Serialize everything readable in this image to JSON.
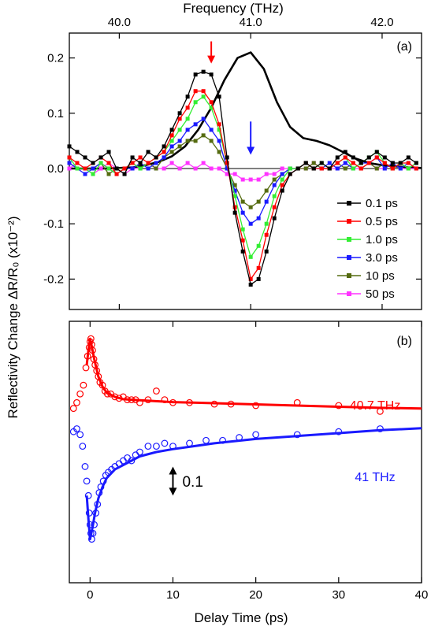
{
  "chart_data": [
    {
      "panel": "(a)",
      "type": "line",
      "xlabel": "Frequency (THz)",
      "ylabel": "Reflectivity Change ΔR/R₀ (x10⁻²)",
      "xlim": [
        39.62,
        42.3
      ],
      "ylim": [
        -0.255,
        0.245
      ],
      "xticks": [
        "40.0",
        "41.0",
        "42.0"
      ],
      "yticks": [
        "0.2",
        "0.1",
        "0.0",
        "-0.1",
        "-0.2"
      ],
      "ytick_values": [
        0.2,
        0.1,
        0.0,
        -0.1,
        -0.2
      ],
      "xtick_values": [
        40.0,
        41.0,
        42.0
      ],
      "x": [
        39.62,
        39.68,
        39.74,
        39.8,
        39.86,
        39.92,
        39.98,
        40.04,
        40.1,
        40.16,
        40.22,
        40.28,
        40.34,
        40.4,
        40.46,
        40.52,
        40.58,
        40.64,
        40.7,
        40.76,
        40.82,
        40.88,
        40.94,
        41.0,
        41.06,
        41.12,
        41.18,
        41.24,
        41.3,
        41.36,
        41.42,
        41.48,
        41.54,
        41.6,
        41.66,
        41.72,
        41.78,
        41.84,
        41.9,
        41.96,
        42.02,
        42.08,
        42.14,
        42.2,
        42.26
      ],
      "series": [
        {
          "name": "0.1 ps",
          "color": "#000000",
          "values": [
            0.04,
            0.03,
            0.02,
            0.01,
            0.02,
            0.03,
            0.0,
            -0.01,
            0.02,
            0.01,
            0.03,
            0.02,
            0.04,
            0.07,
            0.1,
            0.13,
            0.17,
            0.175,
            0.17,
            0.13,
            0.02,
            -0.08,
            -0.15,
            -0.21,
            -0.2,
            -0.15,
            -0.09,
            -0.04,
            -0.01,
            0.0,
            0.01,
            0.0,
            0.01,
            0.0,
            0.02,
            0.03,
            0.02,
            0.01,
            0.02,
            0.03,
            0.02,
            0.01,
            0.01,
            0.02,
            0.01
          ]
        },
        {
          "name": "0.5 ps",
          "color": "#ff0000",
          "values": [
            0.02,
            0.01,
            0.0,
            0.01,
            0.02,
            0.01,
            -0.01,
            0.0,
            0.01,
            0.02,
            0.01,
            0.02,
            0.03,
            0.06,
            0.09,
            0.11,
            0.14,
            0.14,
            0.12,
            0.08,
            0.01,
            -0.07,
            -0.13,
            -0.2,
            -0.18,
            -0.12,
            -0.07,
            -0.03,
            -0.01,
            0.0,
            0.01,
            0.0,
            0.0,
            0.0,
            0.01,
            0.02,
            0.01,
            0.0,
            0.01,
            0.02,
            0.01,
            0.0,
            0.01,
            0.01,
            0.0
          ]
        },
        {
          "name": "1.0 ps",
          "color": "#33ee33",
          "values": [
            0.02,
            0.0,
            0.0,
            -0.01,
            0.01,
            0.0,
            -0.01,
            0.0,
            0.01,
            0.0,
            0.01,
            0.02,
            0.03,
            0.05,
            0.07,
            0.09,
            0.12,
            0.13,
            0.11,
            0.07,
            0.01,
            -0.05,
            -0.11,
            -0.16,
            -0.14,
            -0.1,
            -0.05,
            -0.02,
            0.0,
            0.0,
            0.01,
            0.0,
            0.01,
            0.0,
            0.01,
            0.02,
            0.0,
            0.01,
            0.02,
            0.03,
            0.01,
            0.0,
            0.01,
            0.0,
            0.01
          ]
        },
        {
          "name": "3.0 ps",
          "color": "#1a1aff",
          "values": [
            0.01,
            0.0,
            -0.01,
            0.0,
            0.01,
            0.0,
            -0.01,
            0.0,
            0.0,
            0.01,
            0.0,
            0.01,
            0.02,
            0.04,
            0.05,
            0.07,
            0.08,
            0.09,
            0.07,
            0.05,
            0.0,
            -0.04,
            -0.08,
            -0.1,
            -0.09,
            -0.06,
            -0.03,
            -0.01,
            0.0,
            0.0,
            0.01,
            0.0,
            0.0,
            0.01,
            0.0,
            0.01,
            0.0,
            0.01,
            0.01,
            0.02,
            0.0,
            0.01,
            0.0,
            0.01,
            0.0
          ]
        },
        {
          "name": "10 ps",
          "color": "#556b10",
          "values": [
            0.01,
            0.0,
            0.0,
            0.0,
            0.01,
            -0.01,
            0.0,
            0.0,
            0.01,
            0.0,
            0.01,
            0.0,
            0.02,
            0.03,
            0.04,
            0.05,
            0.05,
            0.06,
            0.05,
            0.03,
            0.0,
            -0.03,
            -0.06,
            -0.07,
            -0.06,
            -0.04,
            -0.02,
            -0.01,
            0.0,
            0.0,
            0.0,
            0.01,
            0.0,
            0.0,
            0.01,
            0.0,
            0.01,
            0.0,
            0.01,
            0.0,
            0.01,
            0.0,
            0.01,
            0.0,
            0.01
          ]
        },
        {
          "name": "50 ps",
          "color": "#ff33ff",
          "values": [
            0.0,
            0.01,
            0.0,
            -0.01,
            0.0,
            0.01,
            0.0,
            -0.01,
            0.0,
            0.0,
            0.01,
            0.0,
            0.0,
            0.01,
            0.0,
            0.01,
            0.0,
            0.01,
            0.0,
            0.0,
            -0.01,
            -0.01,
            -0.02,
            -0.02,
            -0.02,
            -0.01,
            -0.01,
            0.0,
            0.0,
            0.0,
            0.0,
            0.01,
            0.0,
            0.0,
            0.0,
            0.01,
            0.0,
            0.0,
            0.01,
            0.0,
            0.0,
            0.01,
            0.0,
            0.0,
            0.0
          ]
        }
      ],
      "spectrum": {
        "color": "#000000",
        "x": [
          39.62,
          39.9,
          40.1,
          40.2,
          40.3,
          40.4,
          40.5,
          40.6,
          40.7,
          40.8,
          40.9,
          41.0,
          41.1,
          41.2,
          41.3,
          41.4,
          41.5,
          41.6,
          41.7,
          41.8,
          41.9,
          42.0,
          42.1,
          42.2,
          42.3
        ],
        "y": [
          0.0,
          0.0,
          0.002,
          0.006,
          0.012,
          0.022,
          0.04,
          0.07,
          0.11,
          0.16,
          0.2,
          0.21,
          0.18,
          0.12,
          0.075,
          0.055,
          0.05,
          0.042,
          0.03,
          0.018,
          0.01,
          0.006,
          0.004,
          0.002,
          0.001
        ]
      },
      "arrows": [
        {
          "x": 40.7,
          "color": "#ff0000",
          "y_from": 0.23,
          "y_to": 0.19
        },
        {
          "x": 41.0,
          "color": "#1a1aff",
          "y_from": 0.085,
          "y_to": 0.025
        }
      ]
    },
    {
      "panel": "(b)",
      "type": "scatter",
      "xlabel": "Delay Time (ps)",
      "xlim": [
        -2.5,
        40
      ],
      "ylim": [
        -0.6,
        0.3
      ],
      "xticks": [
        "0",
        "10",
        "20",
        "30",
        "40"
      ],
      "xtick_values": [
        0,
        10,
        20,
        30,
        40
      ],
      "series": [
        {
          "name": "40.7 THz",
          "color": "#ff0000",
          "points": [
            [
              -2.0,
              0.0
            ],
            [
              -1.6,
              0.02
            ],
            [
              -1.2,
              0.05
            ],
            [
              -0.8,
              0.08
            ],
            [
              -0.5,
              0.14
            ],
            [
              -0.3,
              0.18
            ],
            [
              -0.1,
              0.21
            ],
            [
              0.0,
              0.23
            ],
            [
              0.1,
              0.24
            ],
            [
              0.2,
              0.22
            ],
            [
              0.3,
              0.2
            ],
            [
              0.45,
              0.17
            ],
            [
              0.6,
              0.15
            ],
            [
              0.8,
              0.13
            ],
            [
              1.0,
              0.11
            ],
            [
              1.2,
              0.09
            ],
            [
              1.5,
              0.08
            ],
            [
              1.8,
              0.06
            ],
            [
              2.1,
              0.05
            ],
            [
              2.5,
              0.05
            ],
            [
              3.0,
              0.04
            ],
            [
              3.5,
              0.035
            ],
            [
              4.0,
              0.04
            ],
            [
              4.5,
              0.03
            ],
            [
              5.0,
              0.03
            ],
            [
              5.5,
              0.03
            ],
            [
              6.0,
              0.02
            ],
            [
              7.0,
              0.03
            ],
            [
              8.0,
              0.06
            ],
            [
              9.0,
              0.03
            ],
            [
              10.0,
              0.02
            ],
            [
              12.0,
              0.02
            ],
            [
              15.0,
              0.015
            ],
            [
              17.0,
              0.015
            ],
            [
              20.0,
              0.01
            ],
            [
              25.0,
              0.02
            ],
            [
              30.0,
              0.01
            ],
            [
              35.0,
              -0.01
            ]
          ],
          "fit": [
            [
              -0.4,
              0.15
            ],
            [
              -0.2,
              0.2
            ],
            [
              0.0,
              0.24
            ],
            [
              0.2,
              0.215
            ],
            [
              0.5,
              0.17
            ],
            [
              1.0,
              0.11
            ],
            [
              1.5,
              0.075
            ],
            [
              2.0,
              0.055
            ],
            [
              3.0,
              0.04
            ],
            [
              4.0,
              0.032
            ],
            [
              6.0,
              0.028
            ],
            [
              10.0,
              0.022
            ],
            [
              15.0,
              0.018
            ],
            [
              20.0,
              0.014
            ],
            [
              25.0,
              0.01
            ],
            [
              30.0,
              0.006
            ],
            [
              35.0,
              0.002
            ],
            [
              40.0,
              0.0
            ]
          ]
        },
        {
          "name": "41 THz",
          "color": "#1a1aff",
          "points": [
            [
              -2.0,
              -0.08
            ],
            [
              -1.6,
              -0.07
            ],
            [
              -1.2,
              -0.09
            ],
            [
              -0.9,
              -0.13
            ],
            [
              -0.6,
              -0.2
            ],
            [
              -0.4,
              -0.25
            ],
            [
              -0.2,
              -0.3
            ],
            [
              -0.1,
              -0.36
            ],
            [
              0.0,
              -0.4
            ],
            [
              0.1,
              -0.43
            ],
            [
              0.2,
              -0.45
            ],
            [
              0.35,
              -0.43
            ],
            [
              0.5,
              -0.4
            ],
            [
              0.7,
              -0.36
            ],
            [
              0.9,
              -0.33
            ],
            [
              1.1,
              -0.29
            ],
            [
              1.3,
              -0.27
            ],
            [
              1.6,
              -0.25
            ],
            [
              1.9,
              -0.23
            ],
            [
              2.2,
              -0.22
            ],
            [
              2.6,
              -0.21
            ],
            [
              3.0,
              -0.2
            ],
            [
              3.5,
              -0.19
            ],
            [
              4.0,
              -0.18
            ],
            [
              4.5,
              -0.17
            ],
            [
              5.0,
              -0.18
            ],
            [
              5.5,
              -0.16
            ],
            [
              6.0,
              -0.15
            ],
            [
              7.0,
              -0.13
            ],
            [
              8.0,
              -0.13
            ],
            [
              9.0,
              -0.12
            ],
            [
              10.0,
              -0.13
            ],
            [
              12.0,
              -0.12
            ],
            [
              14.0,
              -0.11
            ],
            [
              16.0,
              -0.11
            ],
            [
              18.0,
              -0.1
            ],
            [
              20.0,
              -0.09
            ],
            [
              25.0,
              -0.09
            ],
            [
              30.0,
              -0.08
            ],
            [
              35.0,
              -0.07
            ]
          ],
          "fit": [
            [
              -0.4,
              -0.3
            ],
            [
              -0.2,
              -0.38
            ],
            [
              0.0,
              -0.45
            ],
            [
              0.3,
              -0.41
            ],
            [
              0.6,
              -0.36
            ],
            [
              1.0,
              -0.31
            ],
            [
              1.5,
              -0.27
            ],
            [
              2.0,
              -0.24
            ],
            [
              3.0,
              -0.21
            ],
            [
              4.0,
              -0.195
            ],
            [
              6.0,
              -0.165
            ],
            [
              8.0,
              -0.15
            ],
            [
              10.0,
              -0.14
            ],
            [
              15.0,
              -0.12
            ],
            [
              20.0,
              -0.105
            ],
            [
              25.0,
              -0.095
            ],
            [
              30.0,
              -0.085
            ],
            [
              35.0,
              -0.075
            ],
            [
              40.0,
              -0.068
            ]
          ]
        }
      ],
      "scale_bar": {
        "label": "0.1",
        "x": 10,
        "y_from": -0.3,
        "y_to": -0.2
      }
    }
  ]
}
